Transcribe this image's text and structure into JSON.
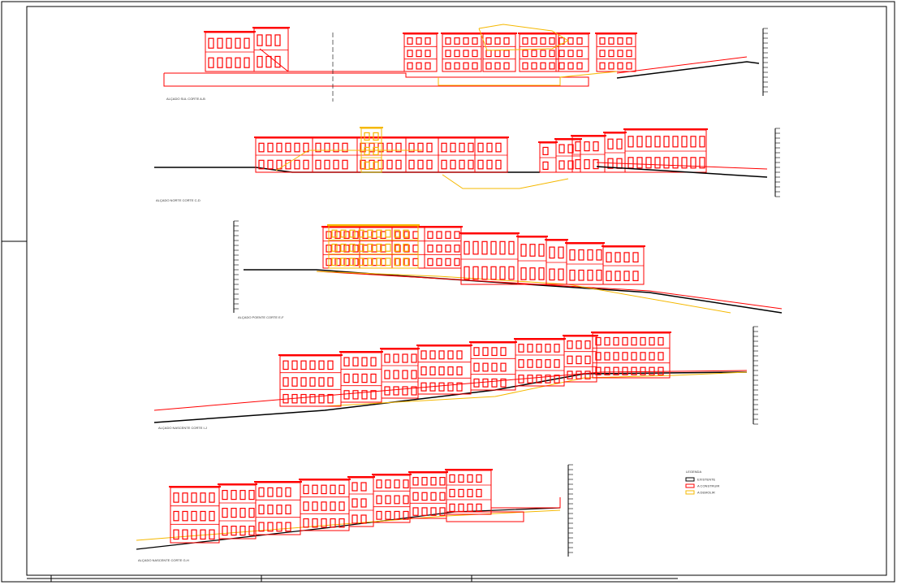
{
  "elevations": [
    {
      "label": "ALÇADO SUL CORTE A-B"
    },
    {
      "label": "ALÇADO NORTE CORTE C-D"
    },
    {
      "label": "ALÇADO POENTE CORTE E-F"
    },
    {
      "label": "ALÇADO NASCENTE CORTE I-J"
    },
    {
      "label": "ALÇADO NASCENTE CORTE G-H"
    }
  ],
  "legend": {
    "title": "LEGENDA",
    "items": [
      {
        "label": "EXISTENTE",
        "color": "#000000"
      },
      {
        "label": "A CONSTRUIR",
        "color": "#ff0000"
      },
      {
        "label": "A DEMOLIR",
        "color": "#f5b800"
      }
    ]
  }
}
